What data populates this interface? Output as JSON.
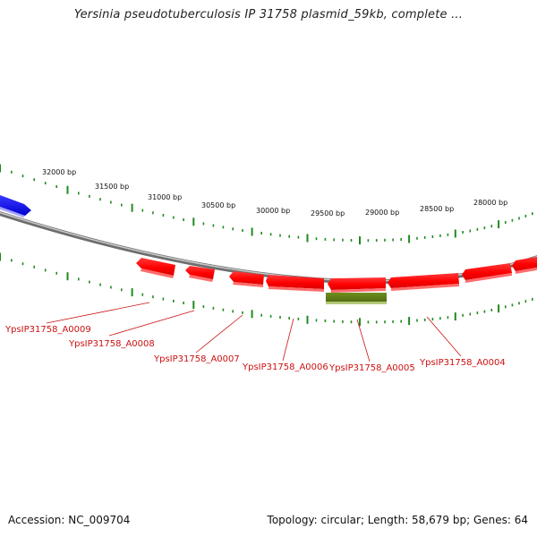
{
  "title": "Yersinia pseudotuberculosis IP 31758 plasmid_59kb, complete ...",
  "footer": {
    "accession": "Accession: NC_009704",
    "summary": "Topology: circular; Length: 58,679 bp; Genes: 64"
  },
  "colors": {
    "backbone": "#8c8c8c",
    "ticks": "#1f8a1f",
    "forward_gene": "#1a1aff",
    "reverse_gene": "#ff1a1a",
    "other_feature": "#6b8e23",
    "label": "#cc1111"
  },
  "scale_labels": [
    "32000 bp",
    "31500 bp",
    "31000 bp",
    "30500 bp",
    "30000 bp",
    "29500 bp",
    "29000 bp",
    "28500 bp",
    "28000 bp"
  ],
  "gene_labels": [
    "YpsIP31758_A0009",
    "YpsIP31758_A0008",
    "YpsIP31758_A0007",
    "YpsIP31758_A0006",
    "YpsIP31758_A0005",
    "YpsIP31758_A0004"
  ]
}
